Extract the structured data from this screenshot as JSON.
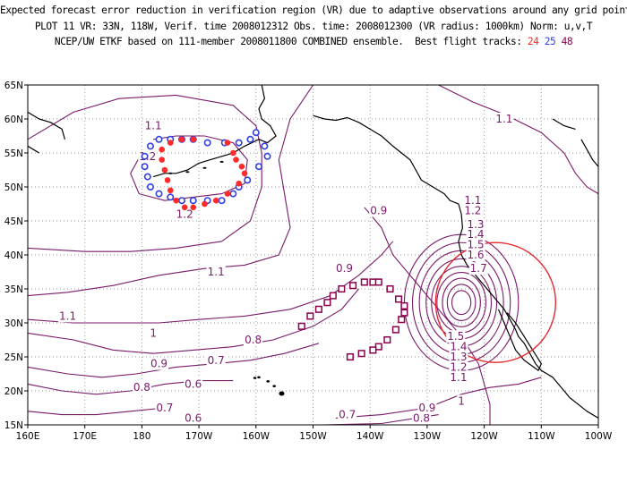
{
  "header": {
    "line1": "Expected forecast error reduction in verification region (VR) due to adaptive observations around any grid point.",
    "line2": "PLOT 11 VR: 33N, 118W, Verif. time 2008012312 Obs. time: 2008012300 (VR radius: 1000km) Norm: u,v,T",
    "line3_prefix": "NCEP/UW ETKF based on 111-member 2008011800 COMBINED ensemble.  Best flight tracks:",
    "track_24": "24",
    "track_25": "25",
    "track_48": "48"
  },
  "axes": {
    "lon_ticks": [
      "160E",
      "170E",
      "180",
      "170W",
      "160W",
      "150W",
      "140W",
      "130W",
      "120W",
      "110W",
      "100W"
    ],
    "lat_ticks": [
      "15N",
      "20N",
      "25N",
      "30N",
      "35N",
      "40N",
      "45N",
      "50N",
      "55N",
      "60N",
      "65N"
    ]
  },
  "colors": {
    "track_24": "#ff2a2a",
    "track_25": "#2f3fe0",
    "track_48": "#8b004b",
    "contour": "#7a1a6a",
    "coast": "#000000",
    "grid": "#9a9a9a",
    "vr_circle": "#e8282c"
  },
  "contour_labels": [
    {
      "text": "1.1",
      "lon": -178,
      "lat": 59
    },
    {
      "text": "1.2",
      "lon": -179,
      "lat": 54.5
    },
    {
      "text": "1.2",
      "lon": -172.5,
      "lat": 46
    },
    {
      "text": "1.1",
      "lon": -167,
      "lat": 37.5
    },
    {
      "text": "1.1",
      "lon": 167,
      "lat": 31
    },
    {
      "text": "1",
      "lon": -178,
      "lat": 28.5
    },
    {
      "text": "0.9",
      "lon": -177,
      "lat": 24
    },
    {
      "text": "0.8",
      "lon": -180,
      "lat": 20.5
    },
    {
      "text": "0.7",
      "lon": -176,
      "lat": 17.5
    },
    {
      "text": "0.6",
      "lon": -171,
      "lat": 16
    },
    {
      "text": "0.9",
      "lon": -144.5,
      "lat": 38
    },
    {
      "text": "0.8",
      "lon": -160.5,
      "lat": 27.5
    },
    {
      "text": "0.7",
      "lon": -167,
      "lat": 24.5
    },
    {
      "text": "0.6",
      "lon": -171,
      "lat": 21
    },
    {
      "text": "0.7",
      "lon": -144,
      "lat": 16.5
    },
    {
      "text": "0.8",
      "lon": -131,
      "lat": 16
    },
    {
      "text": "0.9",
      "lon": -130,
      "lat": 17.5
    },
    {
      "text": "1",
      "lon": -124,
      "lat": 18.5
    },
    {
      "text": "0.9",
      "lon": -138.5,
      "lat": 46.5
    },
    {
      "text": "1.1",
      "lon": -116.5,
      "lat": 60
    },
    {
      "text": "1.1",
      "lon": -122,
      "lat": 48
    },
    {
      "text": "1.2",
      "lon": -122,
      "lat": 46.5
    },
    {
      "text": "1.3",
      "lon": -121.5,
      "lat": 44.5
    },
    {
      "text": "1.4",
      "lon": -121.5,
      "lat": 43
    },
    {
      "text": "1.5",
      "lon": -121.5,
      "lat": 41.5
    },
    {
      "text": "1.6",
      "lon": -121.5,
      "lat": 40
    },
    {
      "text": "1.7",
      "lon": -121,
      "lat": 38
    },
    {
      "text": "1.5",
      "lon": -125,
      "lat": 28
    },
    {
      "text": "1.4",
      "lon": -124.5,
      "lat": 26.5
    },
    {
      "text": "1.3",
      "lon": -124.5,
      "lat": 25
    },
    {
      "text": "1.2",
      "lon": -124.5,
      "lat": 23.5
    },
    {
      "text": "1.1",
      "lon": -124.5,
      "lat": 22
    }
  ],
  "tracks": {
    "track_24": [
      [
        -165,
        56.5
      ],
      [
        -164,
        55
      ],
      [
        -163.5,
        54
      ],
      [
        -162.5,
        53
      ],
      [
        -162,
        52
      ],
      [
        -163,
        50.5
      ],
      [
        -165,
        49
      ],
      [
        -167,
        48
      ],
      [
        -169,
        47.5
      ],
      [
        -171,
        47
      ],
      [
        -172.5,
        47
      ],
      [
        -174,
        48
      ],
      [
        -175,
        49.5
      ],
      [
        -175.5,
        51
      ],
      [
        -176,
        52.5
      ],
      [
        -176.5,
        54
      ],
      [
        -176.5,
        55.5
      ],
      [
        -175,
        56.5
      ],
      [
        -173,
        57
      ],
      [
        -171,
        57
      ]
    ],
    "track_25": [
      [
        -160,
        58
      ],
      [
        -158.5,
        56
      ],
      [
        -158,
        54.5
      ],
      [
        -159.5,
        53
      ],
      [
        -161.5,
        51
      ],
      [
        -163,
        50
      ],
      [
        -164,
        49
      ],
      [
        -166,
        48
      ],
      [
        -168.5,
        48
      ],
      [
        -171,
        48
      ],
      [
        -173,
        48
      ],
      [
        -175,
        48.5
      ],
      [
        -177,
        49
      ],
      [
        -178.5,
        50
      ],
      [
        -179,
        51.5
      ],
      [
        -179.5,
        53
      ],
      [
        -179.5,
        54.5
      ],
      [
        -178.5,
        56
      ],
      [
        -177,
        57
      ],
      [
        -175,
        57
      ],
      [
        -173,
        57
      ],
      [
        -171,
        57
      ],
      [
        -168.5,
        56.5
      ],
      [
        -165.5,
        56.5
      ],
      [
        -163,
        56.5
      ],
      [
        -161,
        57
      ]
    ],
    "track_48": [
      [
        -152,
        29.5
      ],
      [
        -150.5,
        31
      ],
      [
        -149,
        32
      ],
      [
        -147.5,
        33
      ],
      [
        -146.5,
        34
      ],
      [
        -145,
        35
      ],
      [
        -143,
        35.5
      ],
      [
        -141,
        36
      ],
      [
        -139.5,
        36
      ],
      [
        -138.5,
        36
      ],
      [
        -136.5,
        35
      ],
      [
        -135,
        33.5
      ],
      [
        -134,
        32.5
      ],
      [
        -134,
        31.5
      ],
      [
        -134.5,
        30.5
      ],
      [
        -135.5,
        29
      ],
      [
        -137,
        27.5
      ],
      [
        -138.5,
        26.5
      ],
      [
        -139.5,
        26
      ],
      [
        -141.5,
        25.5
      ],
      [
        -143.5,
        25
      ]
    ]
  }
}
